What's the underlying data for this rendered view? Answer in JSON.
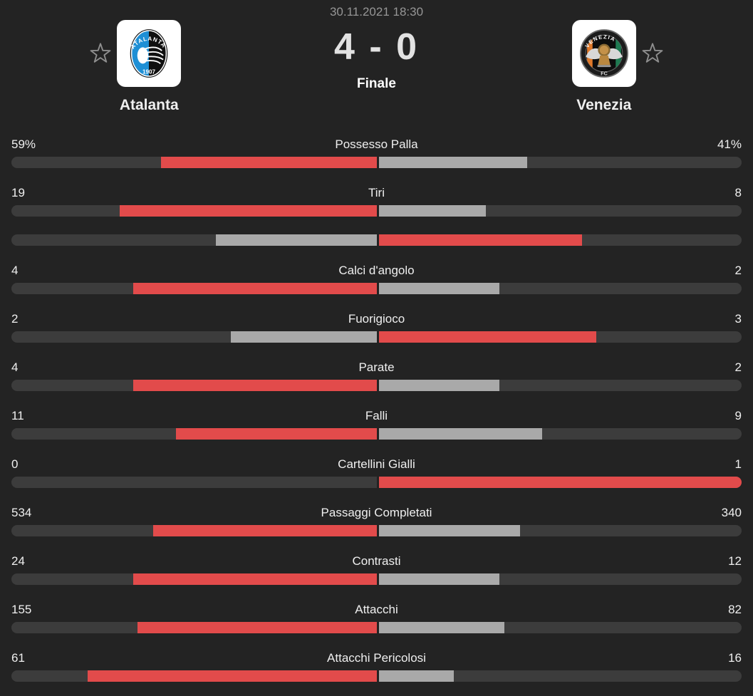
{
  "header": {
    "datetime": "30.11.2021 18:30",
    "score": "4 - 0",
    "status": "Finale",
    "home": {
      "name": "Atalanta"
    },
    "away": {
      "name": "Venezia"
    }
  },
  "icons": {
    "home_favorite": "star-outline",
    "away_favorite": "star-outline",
    "home_crest": "atalanta-crest",
    "away_crest": "venezia-crest"
  },
  "colors": {
    "background": "#232323",
    "bar_track": "#3c3c3c",
    "leader_fill_red": "#e24b4b",
    "trailer_fill_gray": "#a9a9a9",
    "text_primary": "#efefef",
    "text_secondary": "#969696",
    "atalanta_blue": "#1e8fd5",
    "venezia_orange": "#e0792a",
    "venezia_green": "#1f7a52"
  },
  "chart_data": {
    "type": "bar",
    "title": "Statistiche partita Atalanta - Venezia",
    "legend_note": "red = team with higher value, gray = lower value, bars grow from center",
    "rows": [
      {
        "label": "Possesso Palla",
        "home": "59%",
        "away": "41%",
        "home_pct": 59,
        "away_pct": 41,
        "highlight": "home"
      },
      {
        "label": "Tiri",
        "home": "19",
        "away": "8",
        "home_pct": 70.4,
        "away_pct": 29.6,
        "highlight": "home"
      },
      {
        "label": "",
        "home": "",
        "away": "",
        "home_pct": 44,
        "away_pct": 56,
        "highlight": "away"
      },
      {
        "label": "Calci d'angolo",
        "home": "4",
        "away": "2",
        "home_pct": 66.7,
        "away_pct": 33.3,
        "highlight": "home"
      },
      {
        "label": "Fuorigioco",
        "home": "2",
        "away": "3",
        "home_pct": 40,
        "away_pct": 60,
        "highlight": "away"
      },
      {
        "label": "Parate",
        "home": "4",
        "away": "2",
        "home_pct": 66.7,
        "away_pct": 33.3,
        "highlight": "home"
      },
      {
        "label": "Falli",
        "home": "11",
        "away": "9",
        "home_pct": 55,
        "away_pct": 45,
        "highlight": "home"
      },
      {
        "label": "Cartellini Gialli",
        "home": "0",
        "away": "1",
        "home_pct": 0,
        "away_pct": 100,
        "highlight": "away"
      },
      {
        "label": "Passaggi Completati",
        "home": "534",
        "away": "340",
        "home_pct": 61.1,
        "away_pct": 38.9,
        "highlight": "home"
      },
      {
        "label": "Contrasti",
        "home": "24",
        "away": "12",
        "home_pct": 66.7,
        "away_pct": 33.3,
        "highlight": "home"
      },
      {
        "label": "Attacchi",
        "home": "155",
        "away": "82",
        "home_pct": 65.4,
        "away_pct": 34.6,
        "highlight": "home"
      },
      {
        "label": "Attacchi Pericolosi",
        "home": "61",
        "away": "16",
        "home_pct": 79.2,
        "away_pct": 20.8,
        "highlight": "home"
      }
    ]
  }
}
